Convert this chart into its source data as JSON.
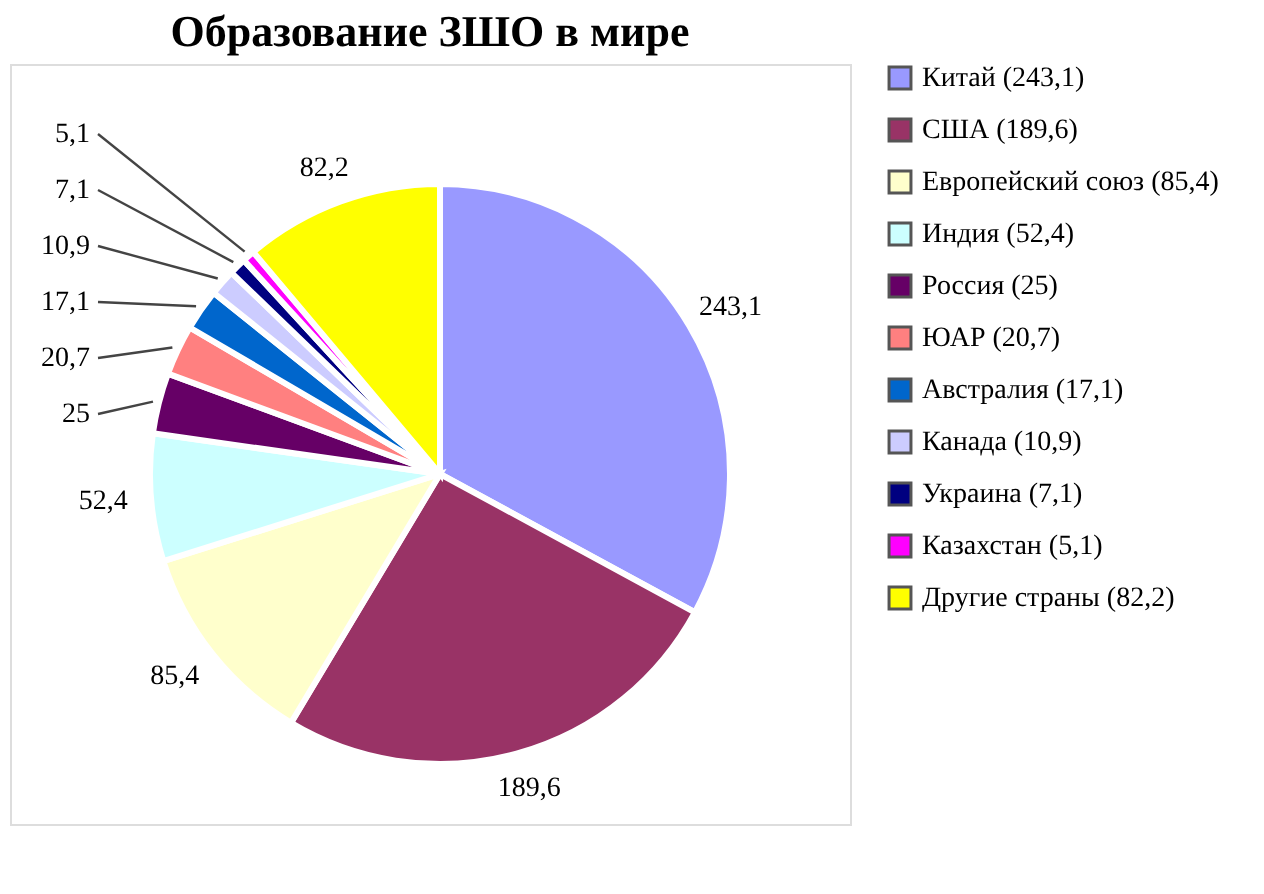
{
  "chart_data": {
    "type": "pie",
    "title": "Образование ЗШО в мире",
    "categories": [
      "Китай (243,1)",
      "США (189,6)",
      "Европейский союз (85,4)",
      "Индия (52,4)",
      "Россия (25)",
      "ЮАР (20,7)",
      "Австралия (17,1)",
      "Канада (10,9)",
      "Украина (7,1)",
      "Казахстан (5,1)",
      "Другие страны (82,2)"
    ],
    "values": [
      243.1,
      189.6,
      85.4,
      52.4,
      25,
      20.7,
      17.1,
      10.9,
      7.1,
      5.1,
      82.2
    ],
    "value_labels": [
      "243,1",
      "189,6",
      "85,4",
      "52,4",
      "25",
      "20,7",
      "17,1",
      "10,9",
      "7,1",
      "5,1",
      "82,2"
    ],
    "colors": [
      "#9999ff",
      "#993366",
      "#ffffcc",
      "#ccffff",
      "#660066",
      "#ff8080",
      "#0066cc",
      "#ccccff",
      "#000080",
      "#ff00ff",
      "#ffff00"
    ],
    "legend": "right"
  }
}
